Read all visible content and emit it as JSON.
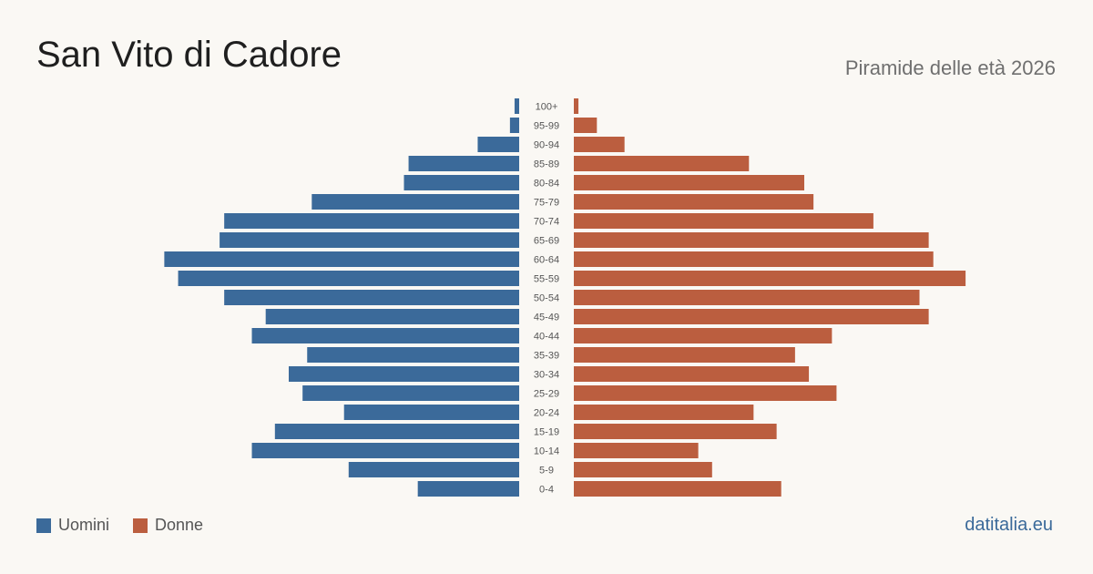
{
  "header": {
    "title": "San Vito di Cadore",
    "subtitle": "Piramide delle età 2026"
  },
  "footer": {
    "brand": "datitalia.eu"
  },
  "colors": {
    "men": "#3b6a9a",
    "women": "#bb5e3f"
  },
  "chart_data": {
    "type": "bar",
    "orientation": "horizontal-pyramid",
    "categories": [
      "100+",
      "95-99",
      "90-94",
      "85-89",
      "80-84",
      "75-79",
      "70-74",
      "65-69",
      "60-64",
      "55-59",
      "50-54",
      "45-49",
      "40-44",
      "35-39",
      "30-34",
      "25-29",
      "20-24",
      "15-19",
      "10-14",
      "5-9",
      "0-4"
    ],
    "series": [
      {
        "name": "Uomini",
        "values": [
          1,
          2,
          9,
          24,
          25,
          45,
          64,
          65,
          77,
          74,
          64,
          55,
          58,
          46,
          50,
          47,
          38,
          53,
          58,
          37,
          22
        ]
      },
      {
        "name": "Donne",
        "values": [
          1,
          5,
          11,
          38,
          50,
          52,
          65,
          77,
          78,
          85,
          75,
          77,
          56,
          48,
          51,
          57,
          39,
          44,
          27,
          30,
          45
        ]
      }
    ],
    "legend": "bottom-left",
    "grid": false
  }
}
